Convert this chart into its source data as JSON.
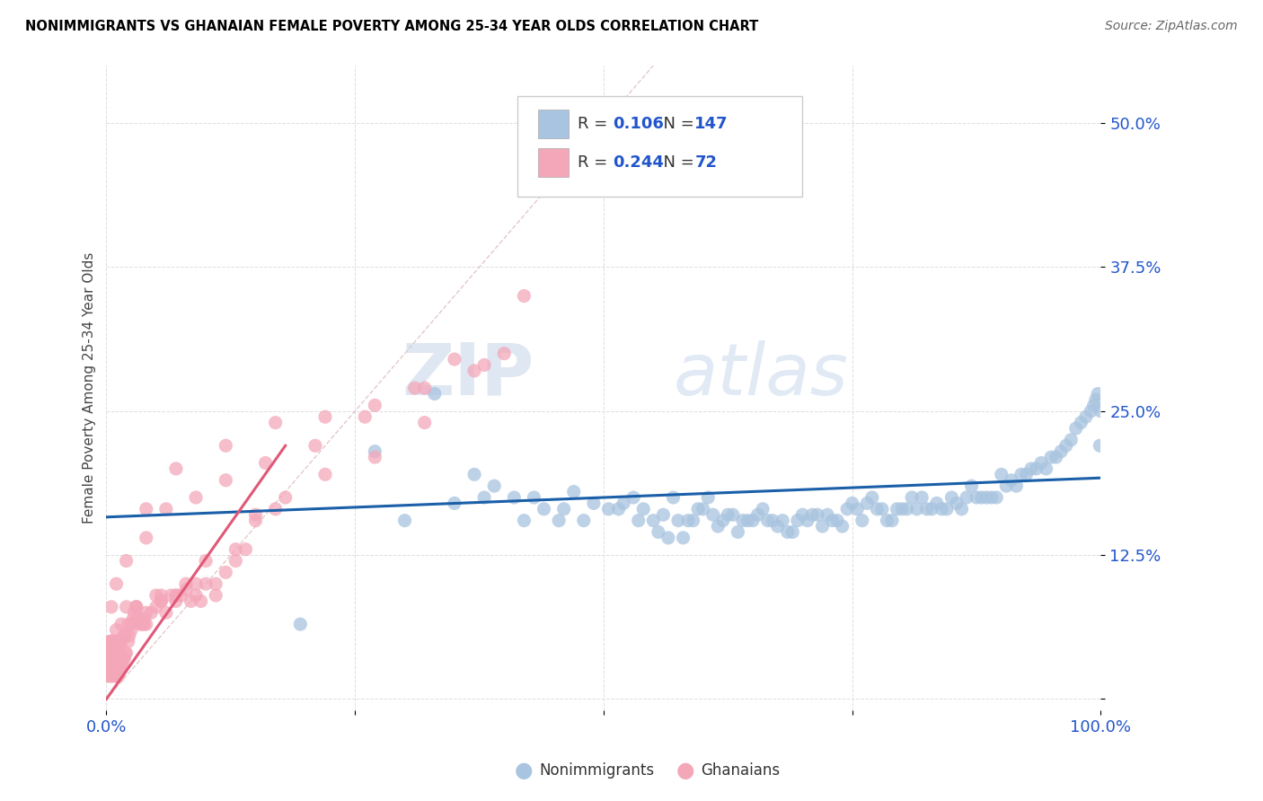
{
  "title": "NONIMMIGRANTS VS GHANAIAN FEMALE POVERTY AMONG 25-34 YEAR OLDS CORRELATION CHART",
  "source": "Source: ZipAtlas.com",
  "ylabel": "Female Poverty Among 25-34 Year Olds",
  "xlim": [
    0,
    1.0
  ],
  "ylim": [
    -0.01,
    0.55
  ],
  "nonimmigrant_R": 0.106,
  "nonimmigrant_N": 147,
  "ghanaian_R": 0.244,
  "ghanaian_N": 72,
  "nonimmigrant_color": "#a8c4e0",
  "ghanaian_color": "#f4a7b9",
  "nonimmigrant_line_color": "#1a5fa8",
  "ghanaian_line_color": "#e05878",
  "diagonal_color": "#ddbbbb",
  "watermark_zip": "ZIP",
  "watermark_atlas": "atlas",
  "legend_color": "#2255cc",
  "tick_color": "#2255cc",
  "nonimmigrant_x": [
    0.195,
    0.27,
    0.33,
    0.37,
    0.39,
    0.41,
    0.43,
    0.455,
    0.46,
    0.47,
    0.3,
    0.35,
    0.38,
    0.42,
    0.44,
    0.48,
    0.49,
    0.505,
    0.515,
    0.52,
    0.53,
    0.535,
    0.54,
    0.55,
    0.555,
    0.56,
    0.565,
    0.57,
    0.575,
    0.58,
    0.585,
    0.59,
    0.595,
    0.6,
    0.605,
    0.61,
    0.615,
    0.62,
    0.625,
    0.63,
    0.635,
    0.64,
    0.645,
    0.65,
    0.655,
    0.66,
    0.665,
    0.67,
    0.675,
    0.68,
    0.685,
    0.69,
    0.695,
    0.7,
    0.705,
    0.71,
    0.715,
    0.72,
    0.725,
    0.73,
    0.735,
    0.74,
    0.745,
    0.75,
    0.755,
    0.76,
    0.765,
    0.77,
    0.775,
    0.78,
    0.785,
    0.79,
    0.795,
    0.8,
    0.805,
    0.81,
    0.815,
    0.82,
    0.825,
    0.83,
    0.835,
    0.84,
    0.845,
    0.85,
    0.855,
    0.86,
    0.865,
    0.87,
    0.875,
    0.88,
    0.885,
    0.89,
    0.895,
    0.9,
    0.905,
    0.91,
    0.915,
    0.92,
    0.925,
    0.93,
    0.935,
    0.94,
    0.945,
    0.95,
    0.955,
    0.96,
    0.965,
    0.97,
    0.975,
    0.98,
    0.985,
    0.99,
    0.993,
    0.995,
    0.997,
    0.999,
    1.0
  ],
  "nonimmigrant_y": [
    0.065,
    0.215,
    0.265,
    0.195,
    0.185,
    0.175,
    0.175,
    0.155,
    0.165,
    0.18,
    0.155,
    0.17,
    0.175,
    0.155,
    0.165,
    0.155,
    0.17,
    0.165,
    0.165,
    0.17,
    0.175,
    0.155,
    0.165,
    0.155,
    0.145,
    0.16,
    0.14,
    0.175,
    0.155,
    0.14,
    0.155,
    0.155,
    0.165,
    0.165,
    0.175,
    0.16,
    0.15,
    0.155,
    0.16,
    0.16,
    0.145,
    0.155,
    0.155,
    0.155,
    0.16,
    0.165,
    0.155,
    0.155,
    0.15,
    0.155,
    0.145,
    0.145,
    0.155,
    0.16,
    0.155,
    0.16,
    0.16,
    0.15,
    0.16,
    0.155,
    0.155,
    0.15,
    0.165,
    0.17,
    0.165,
    0.155,
    0.17,
    0.175,
    0.165,
    0.165,
    0.155,
    0.155,
    0.165,
    0.165,
    0.165,
    0.175,
    0.165,
    0.175,
    0.165,
    0.165,
    0.17,
    0.165,
    0.165,
    0.175,
    0.17,
    0.165,
    0.175,
    0.185,
    0.175,
    0.175,
    0.175,
    0.175,
    0.175,
    0.195,
    0.185,
    0.19,
    0.185,
    0.195,
    0.195,
    0.2,
    0.2,
    0.205,
    0.2,
    0.21,
    0.21,
    0.215,
    0.22,
    0.225,
    0.235,
    0.24,
    0.245,
    0.25,
    0.255,
    0.26,
    0.265,
    0.22,
    0.25
  ],
  "ghanaian_x": [
    0.001,
    0.002,
    0.003,
    0.003,
    0.004,
    0.004,
    0.005,
    0.005,
    0.006,
    0.006,
    0.007,
    0.007,
    0.008,
    0.008,
    0.009,
    0.009,
    0.01,
    0.01,
    0.011,
    0.011,
    0.012,
    0.012,
    0.013,
    0.013,
    0.014,
    0.015,
    0.016,
    0.017,
    0.018,
    0.019,
    0.02,
    0.022,
    0.023,
    0.025,
    0.027,
    0.028,
    0.03,
    0.032,
    0.034,
    0.036,
    0.038,
    0.04,
    0.045,
    0.05,
    0.055,
    0.06,
    0.065,
    0.07,
    0.075,
    0.08,
    0.085,
    0.09,
    0.095,
    0.1,
    0.11,
    0.12,
    0.13,
    0.14,
    0.15,
    0.18,
    0.002,
    0.003,
    0.004,
    0.005,
    0.006,
    0.007,
    0.008,
    0.009,
    0.01,
    0.011,
    0.012,
    0.013,
    0.015,
    0.018,
    0.022,
    0.03,
    0.04,
    0.055,
    0.07,
    0.09,
    0.003,
    0.005,
    0.007,
    0.01,
    0.013,
    0.018,
    0.025,
    0.038,
    0.055,
    0.08,
    0.11,
    0.15,
    0.002,
    0.004,
    0.007,
    0.01,
    0.015,
    0.02,
    0.03,
    0.05,
    0.07,
    0.1,
    0.13,
    0.17,
    0.22,
    0.27,
    0.32,
    0.38,
    0.005,
    0.01,
    0.02,
    0.04,
    0.06,
    0.09,
    0.12,
    0.16,
    0.21,
    0.26,
    0.31,
    0.35,
    0.04,
    0.07,
    0.12,
    0.17,
    0.22,
    0.27,
    0.32,
    0.37,
    0.4,
    0.42
  ],
  "ghanaian_y": [
    0.02,
    0.03,
    0.02,
    0.04,
    0.03,
    0.05,
    0.02,
    0.04,
    0.03,
    0.05,
    0.02,
    0.04,
    0.025,
    0.045,
    0.025,
    0.04,
    0.02,
    0.045,
    0.025,
    0.04,
    0.02,
    0.035,
    0.025,
    0.035,
    0.025,
    0.03,
    0.03,
    0.035,
    0.035,
    0.04,
    0.04,
    0.05,
    0.055,
    0.06,
    0.07,
    0.075,
    0.08,
    0.07,
    0.065,
    0.065,
    0.065,
    0.065,
    0.075,
    0.08,
    0.085,
    0.075,
    0.09,
    0.085,
    0.09,
    0.1,
    0.085,
    0.09,
    0.085,
    0.12,
    0.09,
    0.11,
    0.12,
    0.13,
    0.155,
    0.175,
    0.025,
    0.035,
    0.04,
    0.05,
    0.04,
    0.05,
    0.04,
    0.05,
    0.04,
    0.05,
    0.04,
    0.045,
    0.05,
    0.055,
    0.065,
    0.08,
    0.075,
    0.09,
    0.09,
    0.1,
    0.03,
    0.04,
    0.045,
    0.045,
    0.04,
    0.055,
    0.065,
    0.07,
    0.085,
    0.095,
    0.1,
    0.16,
    0.045,
    0.05,
    0.05,
    0.06,
    0.065,
    0.08,
    0.08,
    0.09,
    0.09,
    0.1,
    0.13,
    0.165,
    0.195,
    0.21,
    0.24,
    0.29,
    0.08,
    0.1,
    0.12,
    0.14,
    0.165,
    0.175,
    0.19,
    0.205,
    0.22,
    0.245,
    0.27,
    0.295,
    0.165,
    0.2,
    0.22,
    0.24,
    0.245,
    0.255,
    0.27,
    0.285,
    0.3,
    0.35
  ],
  "ni_trend_x": [
    0.0,
    1.0
  ],
  "ni_trend_y": [
    0.158,
    0.192
  ],
  "gh_trend_x": [
    0.0,
    0.18
  ],
  "gh_trend_y": [
    0.0,
    0.22
  ]
}
